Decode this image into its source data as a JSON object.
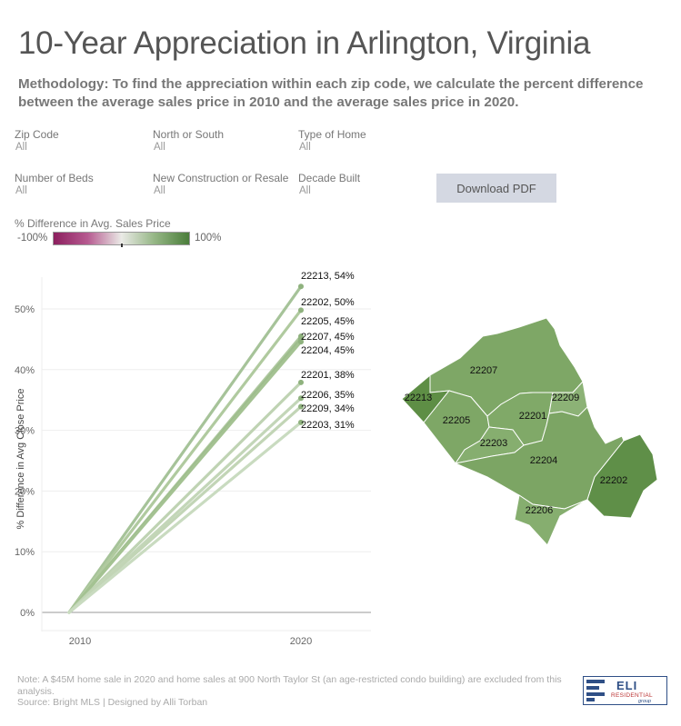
{
  "title": "10-Year Appreciation in Arlington, Virginia",
  "methodology": "Methodology: To find the appreciation within each zip code, we calculate the percent difference between the average sales price in 2010 and the average sales price in 2020.",
  "filters": {
    "zip": {
      "label": "Zip Code",
      "value": "All"
    },
    "ns": {
      "label": "North or South",
      "value": "All"
    },
    "type": {
      "label": "Type of Home",
      "value": "All"
    },
    "beds": {
      "label": "Number of Beds",
      "value": "All"
    },
    "construction": {
      "label": "New Construction or Resale",
      "value": "All"
    },
    "decade": {
      "label": "Decade Built",
      "value": "All"
    }
  },
  "download_label": "Download PDF",
  "legend": {
    "title": "% Difference in Avg. Sales Price",
    "min": "-100%",
    "max": "100%"
  },
  "colors": {
    "line": "#b9cfae",
    "line_strong": "#8fb27e",
    "map_fill": "#7ca564",
    "map_dark": "#5f8f48",
    "map_light": "#8cb276"
  },
  "chart_data": {
    "type": "line",
    "x": [
      "2010",
      "2020"
    ],
    "ylabel": "% Difference in Avg Close Price",
    "ylim": [
      0,
      55
    ],
    "yticks": [
      0,
      10,
      20,
      30,
      40,
      50
    ],
    "ytick_labels": [
      "0%",
      "10%",
      "20%",
      "30%",
      "40%",
      "50%"
    ],
    "series": [
      {
        "name": "22213",
        "values": [
          0,
          53.7
        ],
        "label": "22213, 54%"
      },
      {
        "name": "22202",
        "values": [
          0,
          49.8
        ],
        "label": "22202, 50%"
      },
      {
        "name": "22205",
        "values": [
          0,
          45.5
        ],
        "label": "22205, 45%"
      },
      {
        "name": "22207",
        "values": [
          0,
          45.1
        ],
        "label": "22207, 45%"
      },
      {
        "name": "22204",
        "values": [
          0,
          44.6
        ],
        "label": "22204, 45%"
      },
      {
        "name": "22201",
        "values": [
          0,
          37.9
        ],
        "label": "22201, 38%"
      },
      {
        "name": "22206",
        "values": [
          0,
          35.3
        ],
        "label": "22206, 35%"
      },
      {
        "name": "22209",
        "values": [
          0,
          33.9
        ],
        "label": "22209, 34%"
      },
      {
        "name": "22203",
        "values": [
          0,
          31.3
        ],
        "label": "22203, 31%"
      }
    ]
  },
  "map": {
    "zips": [
      "22207",
      "22213",
      "22205",
      "22201",
      "22209",
      "22203",
      "22204",
      "22202",
      "22206"
    ]
  },
  "note": "Note: A $45M home sale in 2020 and home sales at 900 North Taylor St (an age-restricted condo building) are excluded from this analysis.",
  "source": "Source: Bright MLS | Designed by Alli Torban",
  "logo": {
    "name": "ELI",
    "sub": "RESIDENTIAL",
    "group": "group"
  }
}
